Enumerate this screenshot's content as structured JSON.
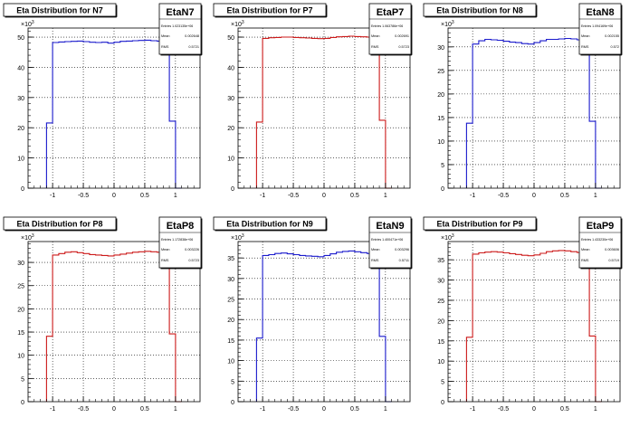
{
  "footer_text": "",
  "colors": {
    "blue": "#1a1acc",
    "red": "#cc1a1a",
    "frame": "#000000",
    "grid": "#000000"
  },
  "chart_data": [
    {
      "type": "bar",
      "title": "Eta Distribution for N7",
      "stats": {
        "name": "EtaN7",
        "entries_label": "Entries",
        "entries": "1.023135e+06",
        "mean_label": "Mean",
        "mean": "0.002648",
        "rms_label": "RMS",
        "rms": "0.5721"
      },
      "color": "blue",
      "exponent_label": "10",
      "exponent": "3",
      "ylim": [
        0,
        53
      ],
      "yticks": [
        0,
        10,
        20,
        30,
        40,
        50
      ],
      "xlim": [
        -1.4,
        1.4
      ],
      "xticks": [
        -1,
        -0.5,
        0,
        0.5,
        1
      ],
      "xtick_labels": [
        "-1",
        "-0.5",
        "0",
        "0.5",
        "1"
      ],
      "bin_width": 0.1,
      "x": [
        -1.05,
        -0.95,
        -0.85,
        -0.75,
        -0.65,
        -0.55,
        -0.45,
        -0.35,
        -0.25,
        -0.15,
        -0.05,
        0.05,
        0.15,
        0.25,
        0.35,
        0.45,
        0.55,
        0.65,
        0.75,
        0.85,
        0.95,
        1.05
      ],
      "values": [
        21.6,
        48.2,
        48.4,
        48.5,
        48.6,
        48.7,
        48.5,
        48.3,
        48.2,
        48.3,
        48.0,
        48.3,
        48.6,
        48.7,
        48.8,
        48.9,
        49.0,
        48.8,
        48.7,
        48.6,
        22.2,
        0
      ]
    },
    {
      "type": "bar",
      "title": "Eta Distribution for P7",
      "stats": {
        "name": "EtaP7",
        "entries_label": "Entries",
        "entries": "1.063786e+06",
        "mean_label": "Mean",
        "mean": "0.002691",
        "rms_label": "RMS",
        "rms": "0.5723"
      },
      "color": "red",
      "exponent_label": "10",
      "exponent": "3",
      "ylim": [
        0,
        53
      ],
      "yticks": [
        0,
        10,
        20,
        30,
        40,
        50
      ],
      "xlim": [
        -1.4,
        1.4
      ],
      "xticks": [
        -1,
        -0.5,
        0,
        0.5,
        1
      ],
      "xtick_labels": [
        "-1",
        "-0.5",
        "0",
        "0.5",
        "1"
      ],
      "bin_width": 0.1,
      "x": [
        -1.05,
        -0.95,
        -0.85,
        -0.75,
        -0.65,
        -0.55,
        -0.45,
        -0.35,
        -0.25,
        -0.15,
        -0.05,
        0.05,
        0.15,
        0.25,
        0.35,
        0.45,
        0.55,
        0.65,
        0.75,
        0.85,
        0.95,
        1.05
      ],
      "values": [
        21.9,
        49.6,
        49.8,
        49.9,
        50.0,
        50.0,
        49.9,
        49.8,
        49.7,
        49.6,
        49.5,
        49.6,
        49.9,
        50.1,
        50.2,
        50.3,
        50.2,
        50.1,
        50.0,
        49.9,
        22.5,
        0
      ]
    },
    {
      "type": "bar",
      "title": "Eta Distribution for N8",
      "stats": {
        "name": "EtaN8",
        "entries_label": "Entries",
        "entries": "1.094169e+06",
        "mean_label": "Mean",
        "mean": "0.002155",
        "rms_label": "RMS",
        "rms": "0.572"
      },
      "color": "blue",
      "exponent_label": "10",
      "exponent": "3",
      "ylim": [
        0,
        34
      ],
      "yticks": [
        0,
        5,
        10,
        15,
        20,
        25,
        30
      ],
      "xlim": [
        -1.4,
        1.4
      ],
      "xticks": [
        -1,
        -0.5,
        0,
        0.5,
        1
      ],
      "xtick_labels": [
        "-1",
        "-0.5",
        "0",
        "0.5",
        "1"
      ],
      "bin_width": 0.1,
      "x": [
        -1.05,
        -0.95,
        -0.85,
        -0.75,
        -0.65,
        -0.55,
        -0.45,
        -0.35,
        -0.25,
        -0.15,
        -0.05,
        0.05,
        0.15,
        0.25,
        0.35,
        0.45,
        0.55,
        0.65,
        0.75,
        0.85,
        0.95,
        1.05
      ],
      "values": [
        13.8,
        30.6,
        31.3,
        31.6,
        31.5,
        31.4,
        31.2,
        31.0,
        30.9,
        30.7,
        30.6,
        30.9,
        31.3,
        31.6,
        31.6,
        31.7,
        31.8,
        31.7,
        31.5,
        31.1,
        14.2,
        0
      ]
    },
    {
      "type": "bar",
      "title": "Eta Distribution for P8",
      "stats": {
        "name": "EtaP8",
        "entries_label": "Entries",
        "entries": "1.172838e+06",
        "mean_label": "Mean",
        "mean": "0.003226",
        "rms_label": "RMS",
        "rms": "0.5723"
      },
      "color": "red",
      "exponent_label": "10",
      "exponent": "3",
      "ylim": [
        0,
        34.5
      ],
      "yticks": [
        0,
        5,
        10,
        15,
        20,
        25,
        30
      ],
      "xlim": [
        -1.4,
        1.4
      ],
      "xticks": [
        -1,
        -0.5,
        0,
        0.5,
        1
      ],
      "xtick_labels": [
        "-1",
        "-0.5",
        "0",
        "0.5",
        "1"
      ],
      "bin_width": 0.1,
      "x": [
        -1.05,
        -0.95,
        -0.85,
        -0.75,
        -0.65,
        -0.55,
        -0.45,
        -0.35,
        -0.25,
        -0.15,
        -0.05,
        0.05,
        0.15,
        0.25,
        0.35,
        0.45,
        0.55,
        0.65,
        0.75,
        0.85,
        0.95,
        1.05
      ],
      "values": [
        14.1,
        31.6,
        31.9,
        32.2,
        32.3,
        32.1,
        31.9,
        31.7,
        31.6,
        31.5,
        31.4,
        31.6,
        31.8,
        32.0,
        32.2,
        32.3,
        32.4,
        32.3,
        32.2,
        32.0,
        14.6,
        0
      ]
    },
    {
      "type": "bar",
      "title": "Eta Distribution for N9",
      "stats": {
        "name": "EtaN9",
        "entries_label": "Entries",
        "entries": "1.400471e+06",
        "mean_label": "Mean",
        "mean": "0.003296",
        "rms_label": "RMS",
        "rms": "0.5711"
      },
      "color": "blue",
      "exponent_label": "10",
      "exponent": "3",
      "ylim": [
        0,
        39
      ],
      "yticks": [
        0,
        5,
        10,
        15,
        20,
        25,
        30,
        35
      ],
      "xlim": [
        -1.4,
        1.4
      ],
      "xticks": [
        -1,
        -0.5,
        0,
        0.5,
        1
      ],
      "xtick_labels": [
        "-1",
        "-0.5",
        "0",
        "0.5",
        "1"
      ],
      "bin_width": 0.1,
      "x": [
        -1.05,
        -0.95,
        -0.85,
        -0.75,
        -0.65,
        -0.55,
        -0.45,
        -0.35,
        -0.25,
        -0.15,
        -0.05,
        0.05,
        0.15,
        0.25,
        0.35,
        0.45,
        0.55,
        0.65,
        0.75,
        0.85,
        0.95,
        1.05
      ],
      "values": [
        15.5,
        35.6,
        35.8,
        36.1,
        36.2,
        36.0,
        35.8,
        35.6,
        35.5,
        35.4,
        35.3,
        35.6,
        36.0,
        36.4,
        36.6,
        36.7,
        36.5,
        36.3,
        36.1,
        35.9,
        15.9,
        0
      ]
    },
    {
      "type": "bar",
      "title": "Eta Distribution for P9",
      "stats": {
        "name": "EtaP9",
        "entries_label": "Entries",
        "entries": "1.433230e+06",
        "mean_label": "Mean",
        "mean": "0.003606",
        "rms_label": "RMS",
        "rms": "0.5719"
      },
      "color": "red",
      "exponent_label": "10",
      "exponent": "3",
      "ylim": [
        0,
        39.5
      ],
      "yticks": [
        0,
        5,
        10,
        15,
        20,
        25,
        30,
        35
      ],
      "xlim": [
        -1.4,
        1.4
      ],
      "xticks": [
        -1,
        -0.5,
        0,
        0.5,
        1
      ],
      "xtick_labels": [
        "-1",
        "-0.5",
        "0",
        "0.5",
        "1"
      ],
      "bin_width": 0.1,
      "x": [
        -1.05,
        -0.95,
        -0.85,
        -0.75,
        -0.65,
        -0.55,
        -0.45,
        -0.35,
        -0.25,
        -0.15,
        -0.05,
        0.05,
        0.15,
        0.25,
        0.35,
        0.45,
        0.55,
        0.65,
        0.75,
        0.85,
        0.95,
        1.05
      ],
      "values": [
        15.9,
        36.4,
        36.7,
        36.9,
        37.0,
        36.9,
        36.7,
        36.5,
        36.3,
        36.1,
        36.0,
        36.2,
        36.6,
        37.0,
        37.2,
        37.3,
        37.2,
        37.0,
        36.8,
        36.6,
        16.2,
        0
      ]
    }
  ]
}
